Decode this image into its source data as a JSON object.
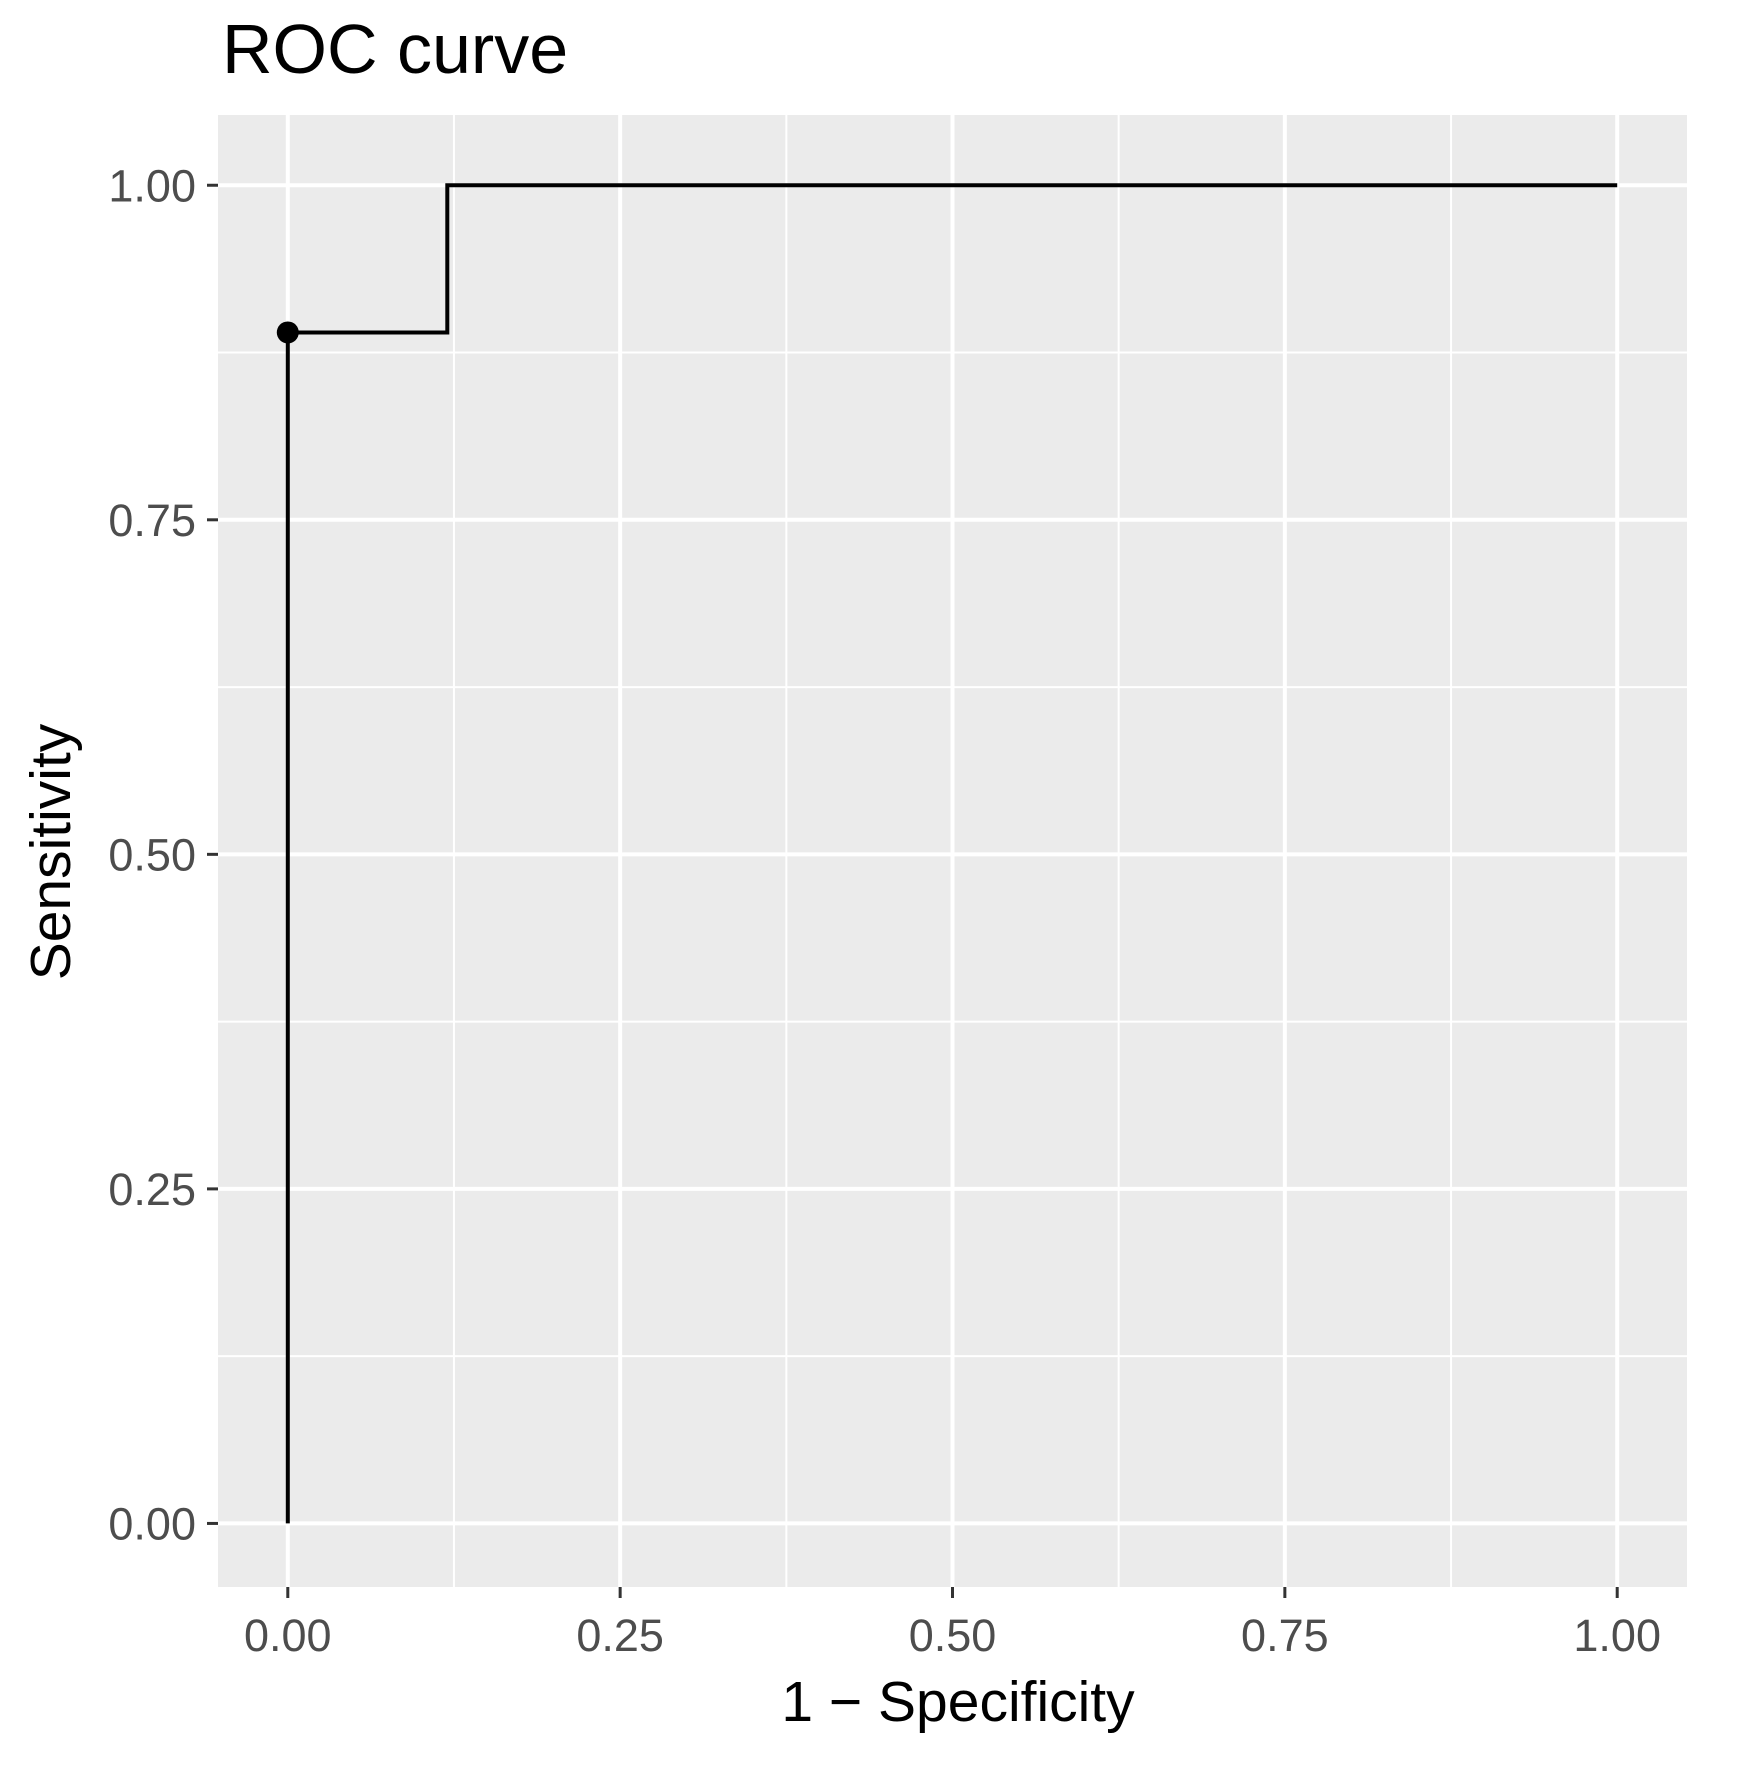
{
  "chart_data": {
    "type": "line",
    "title": "ROC curve",
    "xlabel": "1 − Specificity",
    "ylabel": "Sensitivity",
    "xlim": [
      -0.0525,
      1.0525
    ],
    "ylim": [
      -0.0475,
      1.0525
    ],
    "x_ticks": [
      0,
      0.25,
      0.5,
      0.75,
      1
    ],
    "x_tick_labels": [
      "0.00",
      "0.25",
      "0.50",
      "0.75",
      "1.00"
    ],
    "y_ticks": [
      0,
      0.25,
      0.5,
      0.75,
      1
    ],
    "y_tick_labels": [
      "0.00",
      "0.25",
      "0.50",
      "0.75",
      "1.00"
    ],
    "grid": true,
    "background_color": "#ebebeb",
    "grid_color": "#ffffff",
    "line_color": "#000000",
    "series": [
      {
        "x": [
          0,
          0,
          0.12,
          0.12,
          1
        ],
        "y": [
          0,
          0.89,
          0.89,
          1,
          1
        ]
      }
    ],
    "highlight_point": {
      "x": 0,
      "y": 0.89
    }
  }
}
